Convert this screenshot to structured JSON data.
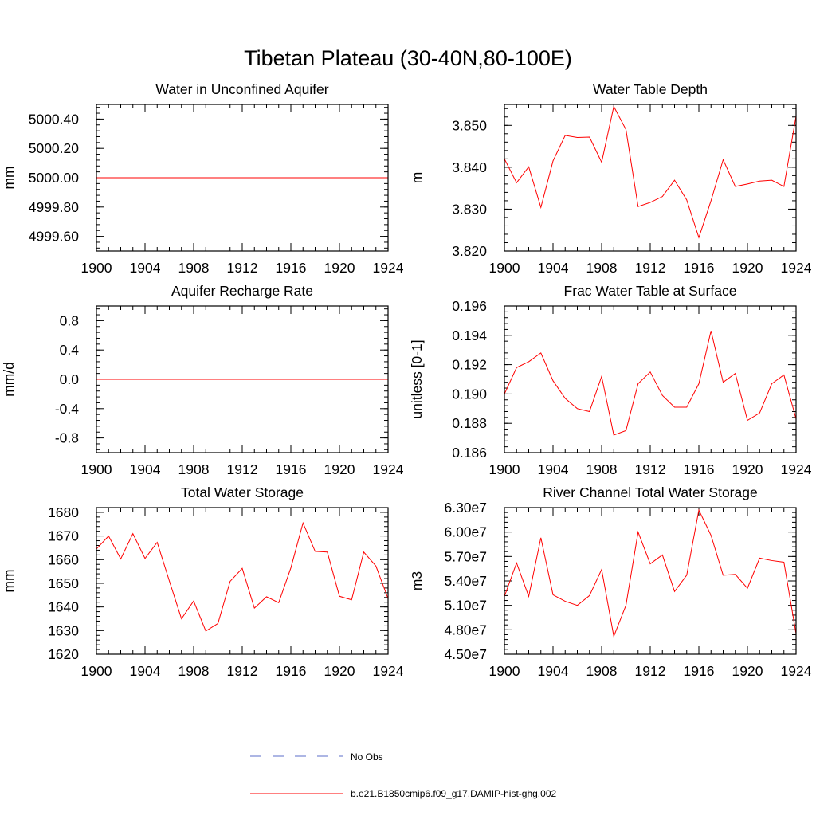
{
  "title": "Tibetan Plateau (30-40N,80-100E)",
  "colors": {
    "model": "#ff0000",
    "obs": "#5b6cc8",
    "axis": "#000000"
  },
  "legend": {
    "obs_label": "No Obs",
    "model_label": "b.e21.B1850cmip6.f09_g17.DAMIP-hist-ghg.002"
  },
  "chart_data": [
    {
      "type": "line",
      "title": "Water in Unconfined Aquifer",
      "ylabel": "mm",
      "xlim": [
        1900,
        1924
      ],
      "ylim": [
        4999.5,
        5000.5
      ],
      "xticks": [
        1900,
        1904,
        1908,
        1912,
        1916,
        1920,
        1924
      ],
      "yticks": [
        4999.6,
        4999.8,
        5000.0,
        5000.2,
        5000.4
      ],
      "ytick_labels": [
        "4999.60",
        "4999.80",
        "5000.00",
        "5000.20",
        "5000.40"
      ],
      "x": [
        1900,
        1901,
        1902,
        1903,
        1904,
        1905,
        1906,
        1907,
        1908,
        1909,
        1910,
        1911,
        1912,
        1913,
        1914,
        1915,
        1916,
        1917,
        1918,
        1919,
        1920,
        1921,
        1922,
        1923,
        1924
      ],
      "series": [
        {
          "values": [
            5000.0,
            5000.0,
            5000.0,
            5000.0,
            5000.0,
            5000.0,
            5000.0,
            5000.0,
            5000.0,
            5000.0,
            5000.0,
            5000.0,
            5000.0,
            5000.0,
            5000.0,
            5000.0,
            5000.0,
            5000.0,
            5000.0,
            5000.0,
            5000.0,
            5000.0,
            5000.0,
            5000.0,
            5000.0
          ]
        }
      ]
    },
    {
      "type": "line",
      "title": "Water Table Depth",
      "ylabel": "m",
      "xlim": [
        1900,
        1924
      ],
      "ylim": [
        3.82,
        3.855
      ],
      "xticks": [
        1900,
        1904,
        1908,
        1912,
        1916,
        1920,
        1924
      ],
      "yticks": [
        3.82,
        3.83,
        3.84,
        3.85
      ],
      "ytick_labels": [
        "3.820",
        "3.830",
        "3.840",
        "3.850"
      ],
      "x": [
        1900,
        1901,
        1902,
        1903,
        1904,
        1905,
        1906,
        1907,
        1908,
        1909,
        1910,
        1911,
        1912,
        1913,
        1914,
        1915,
        1916,
        1917,
        1918,
        1919,
        1920,
        1921,
        1922,
        1923,
        1924
      ],
      "series": [
        {
          "values": [
            3.842,
            3.8363,
            3.8401,
            3.8304,
            3.8415,
            3.8476,
            3.8471,
            3.8472,
            3.8412,
            3.8545,
            3.849,
            3.8306,
            3.8316,
            3.833,
            3.8369,
            3.8322,
            3.8232,
            3.832,
            3.8418,
            3.8354,
            3.836,
            3.8367,
            3.8369,
            3.8354,
            3.8522
          ]
        }
      ]
    },
    {
      "type": "line",
      "title": "Aquifer Recharge Rate",
      "ylabel": "mm/d",
      "xlim": [
        1900,
        1924
      ],
      "ylim": [
        -1.0,
        1.0
      ],
      "xticks": [
        1900,
        1904,
        1908,
        1912,
        1916,
        1920,
        1924
      ],
      "yticks": [
        -0.8,
        -0.4,
        0.0,
        0.4,
        0.8
      ],
      "ytick_labels": [
        "-0.8",
        "-0.4",
        "0.0",
        "0.4",
        "0.8"
      ],
      "x": [
        1900,
        1901,
        1902,
        1903,
        1904,
        1905,
        1906,
        1907,
        1908,
        1909,
        1910,
        1911,
        1912,
        1913,
        1914,
        1915,
        1916,
        1917,
        1918,
        1919,
        1920,
        1921,
        1922,
        1923,
        1924
      ],
      "series": [
        {
          "values": [
            0,
            0,
            0,
            0,
            0,
            0,
            0,
            0,
            0,
            0,
            0,
            0,
            0,
            0,
            0,
            0,
            0,
            0,
            0,
            0,
            0,
            0,
            0,
            0,
            0
          ]
        }
      ]
    },
    {
      "type": "line",
      "title": "Frac Water Table at Surface",
      "ylabel": "unitless [0-1]",
      "xlim": [
        1900,
        1924
      ],
      "ylim": [
        0.186,
        0.196
      ],
      "xticks": [
        1900,
        1904,
        1908,
        1912,
        1916,
        1920,
        1924
      ],
      "yticks": [
        0.186,
        0.188,
        0.19,
        0.192,
        0.194,
        0.196
      ],
      "ytick_labels": [
        "0.186",
        "0.188",
        "0.190",
        "0.192",
        "0.194",
        "0.196"
      ],
      "x": [
        1900,
        1901,
        1902,
        1903,
        1904,
        1905,
        1906,
        1907,
        1908,
        1909,
        1910,
        1911,
        1912,
        1913,
        1914,
        1915,
        1916,
        1917,
        1918,
        1919,
        1920,
        1921,
        1922,
        1923,
        1924
      ],
      "series": [
        {
          "values": [
            0.19,
            0.1918,
            0.1922,
            0.1928,
            0.1909,
            0.1897,
            0.189,
            0.1888,
            0.1912,
            0.1872,
            0.1875,
            0.1907,
            0.1915,
            0.1899,
            0.1891,
            0.1891,
            0.1907,
            0.1943,
            0.1908,
            0.1914,
            0.1882,
            0.1887,
            0.1907,
            0.1913,
            0.1883
          ]
        }
      ]
    },
    {
      "type": "line",
      "title": "Total Water Storage",
      "ylabel": "mm",
      "xlim": [
        1900,
        1924
      ],
      "ylim": [
        1620,
        1682
      ],
      "xticks": [
        1900,
        1904,
        1908,
        1912,
        1916,
        1920,
        1924
      ],
      "yticks": [
        1620,
        1630,
        1640,
        1650,
        1660,
        1670,
        1680
      ],
      "ytick_labels": [
        "1620",
        "1630",
        "1640",
        "1650",
        "1660",
        "1670",
        "1680"
      ],
      "x": [
        1900,
        1901,
        1902,
        1903,
        1904,
        1905,
        1906,
        1907,
        1908,
        1909,
        1910,
        1911,
        1912,
        1913,
        1914,
        1915,
        1916,
        1917,
        1918,
        1919,
        1920,
        1921,
        1922,
        1923,
        1924
      ],
      "series": [
        {
          "values": [
            1664.5,
            1670.0,
            1660.3,
            1671.0,
            1660.5,
            1667.3,
            1651.0,
            1635.0,
            1642.5,
            1629.8,
            1633.0,
            1650.8,
            1656.3,
            1639.5,
            1644.3,
            1641.8,
            1656.5,
            1675.5,
            1663.5,
            1663.2,
            1644.5,
            1643.0,
            1663.2,
            1657.3,
            1643.5
          ]
        }
      ]
    },
    {
      "type": "line",
      "title": "River Channel Total Water Storage",
      "ylabel": "m3",
      "xlim": [
        1900,
        1924
      ],
      "ylim": [
        45000000,
        63000000
      ],
      "xticks": [
        1900,
        1904,
        1908,
        1912,
        1916,
        1920,
        1924
      ],
      "yticks": [
        45000000,
        48000000,
        51000000,
        54000000,
        57000000,
        60000000,
        63000000
      ],
      "ytick_labels": [
        "4.50e7",
        "4.80e7",
        "5.10e7",
        "5.40e7",
        "5.70e7",
        "6.00e7",
        "6.30e7"
      ],
      "x": [
        1900,
        1901,
        1902,
        1903,
        1904,
        1905,
        1906,
        1907,
        1908,
        1909,
        1910,
        1911,
        1912,
        1913,
        1914,
        1915,
        1916,
        1917,
        1918,
        1919,
        1920,
        1921,
        1922,
        1923,
        1924
      ],
      "series": [
        {
          "values": [
            52100000,
            56200000,
            52100000,
            59300000,
            52300000,
            51500000,
            51000000,
            52200000,
            55400000,
            47200000,
            51000000,
            60000000,
            56100000,
            57200000,
            52700000,
            54700000,
            62700000,
            59600000,
            54700000,
            54800000,
            53100000,
            56800000,
            56500000,
            56300000,
            47500000
          ]
        }
      ]
    }
  ]
}
